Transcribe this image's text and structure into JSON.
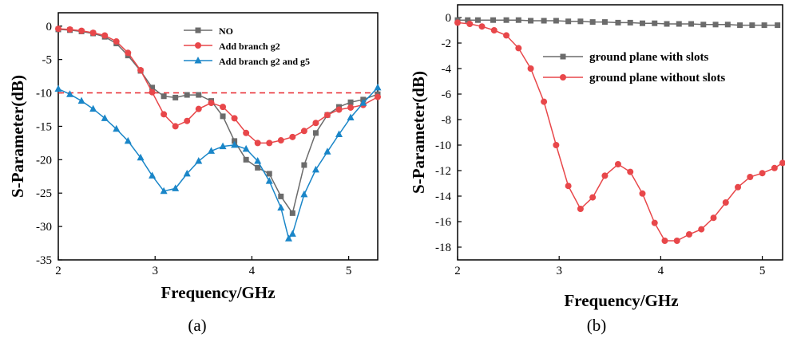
{
  "chart_data": [
    {
      "type": "line",
      "panel_label": "(a)",
      "xlabel": "Frequency/GHz",
      "ylabel": "S-Parameter(dB)",
      "xlim": [
        2,
        5.3
      ],
      "ylim": [
        -35,
        2
      ],
      "xticks": [
        2,
        3,
        4,
        5
      ],
      "yticks": [
        0,
        -5,
        -10,
        -15,
        -20,
        -25,
        -30,
        -35
      ],
      "legend_position": "top-center",
      "reference_line": {
        "y": -10,
        "style": "dashed",
        "color": "#e8262d"
      },
      "series": [
        {
          "name": "NO",
          "color": "#6b6b6b",
          "marker": "square",
          "x": [
            2.0,
            2.12,
            2.24,
            2.36,
            2.48,
            2.6,
            2.72,
            2.85,
            2.97,
            3.09,
            3.21,
            3.33,
            3.45,
            3.58,
            3.7,
            3.82,
            3.94,
            4.06,
            4.18,
            4.3,
            4.42,
            4.54,
            4.66,
            4.78,
            4.9,
            5.02,
            5.15,
            5.3
          ],
          "y": [
            -0.5,
            -0.6,
            -0.8,
            -1.1,
            -1.6,
            -2.6,
            -4.4,
            -6.7,
            -9.2,
            -10.5,
            -10.7,
            -10.3,
            -10.3,
            -11.2,
            -13.5,
            -17.2,
            -20.0,
            -21.2,
            -22.1,
            -25.5,
            -28.0,
            -20.8,
            -16.0,
            -13.3,
            -12.1,
            -11.4,
            -11.0,
            -10.2
          ]
        },
        {
          "name": "Add branch g2",
          "color": "#e8474a",
          "marker": "circle",
          "x": [
            2.0,
            2.12,
            2.24,
            2.36,
            2.48,
            2.6,
            2.72,
            2.85,
            2.97,
            3.09,
            3.21,
            3.33,
            3.45,
            3.58,
            3.7,
            3.82,
            3.94,
            4.06,
            4.18,
            4.3,
            4.42,
            4.54,
            4.66,
            4.78,
            4.9,
            5.02,
            5.15,
            5.3
          ],
          "y": [
            -0.4,
            -0.5,
            -0.7,
            -1.0,
            -1.4,
            -2.3,
            -4.0,
            -6.6,
            -9.9,
            -13.2,
            -15.0,
            -14.2,
            -12.4,
            -11.5,
            -12.1,
            -13.8,
            -16.0,
            -17.5,
            -17.5,
            -17.1,
            -16.6,
            -15.7,
            -14.5,
            -13.3,
            -12.5,
            -12.2,
            -11.8,
            -10.6
          ]
        },
        {
          "name": "Add branch g2 and g5",
          "color": "#1a86c8",
          "marker": "triangle",
          "x": [
            2.0,
            2.12,
            2.24,
            2.36,
            2.48,
            2.6,
            2.72,
            2.85,
            2.97,
            3.09,
            3.21,
            3.33,
            3.45,
            3.58,
            3.7,
            3.82,
            3.94,
            4.06,
            4.18,
            4.3,
            4.38,
            4.42,
            4.54,
            4.66,
            4.78,
            4.9,
            5.02,
            5.15,
            5.3
          ],
          "y": [
            -9.4,
            -10.2,
            -11.2,
            -12.4,
            -13.8,
            -15.4,
            -17.2,
            -19.7,
            -22.4,
            -24.7,
            -24.3,
            -22.1,
            -20.2,
            -18.7,
            -18.0,
            -17.8,
            -18.4,
            -20.2,
            -23.2,
            -27.2,
            -31.8,
            -31.1,
            -25.2,
            -21.5,
            -18.8,
            -16.2,
            -13.7,
            -11.5,
            -9.2
          ]
        }
      ]
    },
    {
      "type": "line",
      "panel_label": "(b)",
      "xlabel": "Frequency/GHz",
      "ylabel": "S-Parameter(dB)",
      "xlim": [
        2,
        5.2
      ],
      "ylim": [
        -19,
        1
      ],
      "xticks": [
        2,
        3,
        4,
        5
      ],
      "yticks": [
        0,
        -2,
        -4,
        -6,
        -8,
        -10,
        -12,
        -14,
        -16,
        -18
      ],
      "legend_position": "top-right",
      "series": [
        {
          "name": "ground plane with slots",
          "color": "#6b6b6b",
          "marker": "square",
          "x": [
            2.0,
            2.1,
            2.2,
            2.35,
            2.48,
            2.6,
            2.72,
            2.85,
            2.97,
            3.09,
            3.21,
            3.33,
            3.45,
            3.58,
            3.7,
            3.82,
            3.94,
            4.06,
            4.18,
            4.3,
            4.42,
            4.54,
            4.66,
            4.78,
            4.9,
            5.02,
            5.15
          ],
          "y": [
            -0.2,
            -0.2,
            -0.2,
            -0.2,
            -0.2,
            -0.2,
            -0.25,
            -0.25,
            -0.25,
            -0.3,
            -0.3,
            -0.35,
            -0.35,
            -0.4,
            -0.4,
            -0.45,
            -0.45,
            -0.5,
            -0.5,
            -0.5,
            -0.55,
            -0.55,
            -0.55,
            -0.6,
            -0.6,
            -0.6,
            -0.6
          ]
        },
        {
          "name": "ground plane without slots",
          "color": "#e8474a",
          "marker": "circle",
          "x": [
            2.0,
            2.12,
            2.24,
            2.36,
            2.48,
            2.6,
            2.72,
            2.85,
            2.97,
            3.09,
            3.21,
            3.33,
            3.45,
            3.58,
            3.7,
            3.82,
            3.94,
            4.04,
            4.16,
            4.28,
            4.4,
            4.52,
            4.64,
            4.76,
            4.88,
            5.0,
            5.12,
            5.2
          ],
          "y": [
            -0.4,
            -0.5,
            -0.7,
            -1.0,
            -1.4,
            -2.4,
            -4.0,
            -6.6,
            -10.0,
            -13.2,
            -15.0,
            -14.1,
            -12.4,
            -11.5,
            -12.1,
            -13.8,
            -16.1,
            -17.5,
            -17.5,
            -17.0,
            -16.6,
            -15.7,
            -14.5,
            -13.3,
            -12.5,
            -12.2,
            -11.8,
            -11.4
          ]
        }
      ]
    }
  ]
}
